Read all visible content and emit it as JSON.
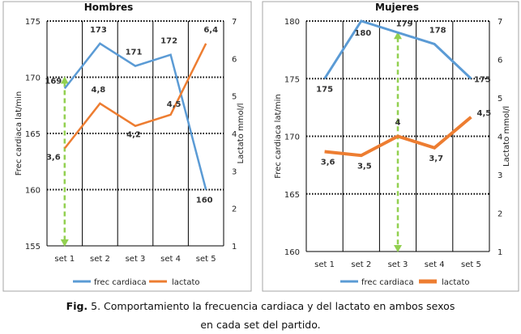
{
  "caption": {
    "fig_label": "Fig.",
    "line1": " 5. Comportamiento la frecuencia cardiaca y del lactato en ambos sexos",
    "line2": "en cada set del partido."
  },
  "colors": {
    "hr": "#5b9bd5",
    "lactate": "#ed7d31",
    "arrow": "#92d050",
    "grid": "#000000",
    "frame": "#a6a6a6"
  },
  "chart_data": [
    {
      "type": "line",
      "title": "Hombres",
      "categories": [
        "set 1",
        "set 2",
        "set 3",
        "set 4",
        "set 5"
      ],
      "series": [
        {
          "name": "frec cardiaca",
          "axis": "left",
          "values": [
            169,
            173,
            171,
            172,
            160
          ],
          "labels": [
            "169",
            "173",
            "171",
            "172",
            "160"
          ]
        },
        {
          "name": "lactato",
          "axis": "right",
          "values": [
            3.6,
            4.8,
            4.2,
            4.5,
            6.4
          ],
          "labels": [
            "3,6",
            "4,8",
            "4,2",
            "4,5",
            "6,4"
          ]
        }
      ],
      "ylabel": "Frec cardiaca lat/min",
      "y2label": "Lactato mmol/l",
      "ylim": [
        155,
        175
      ],
      "yticks": [
        "155",
        "160",
        "165",
        "170",
        "175"
      ],
      "y2lim": [
        1,
        7
      ],
      "y2ticks": [
        "1",
        "2",
        "3",
        "4",
        "5",
        "6",
        "7"
      ],
      "arrow": {
        "category": "set 1",
        "from": 170,
        "to": 155
      },
      "legend": "bottom"
    },
    {
      "type": "line",
      "title": "Mujeres",
      "categories": [
        "set 1",
        "set 2",
        "set 3",
        "set 4",
        "set 5"
      ],
      "series": [
        {
          "name": "frec cardiaca",
          "axis": "left",
          "values": [
            175,
            180,
            179,
            178,
            175
          ],
          "labels": [
            "175",
            "180",
            "179",
            "178",
            "175"
          ]
        },
        {
          "name": "lactato",
          "axis": "right",
          "values": [
            3.6,
            3.5,
            4,
            3.7,
            4.5
          ],
          "labels": [
            "3,6",
            "3,5",
            "4",
            "3,7",
            "4,5"
          ]
        }
      ],
      "ylabel": "Frec cardiaca lat/min",
      "y2label": "Lactato mmol/l",
      "ylim": [
        160,
        180
      ],
      "yticks": [
        "160",
        "165",
        "170",
        "175",
        "180"
      ],
      "y2lim": [
        1,
        7
      ],
      "y2ticks": [
        "1",
        "2",
        "3",
        "4",
        "5",
        "6",
        "7"
      ],
      "arrow": {
        "category": "set 3",
        "from": 179,
        "to": 160
      },
      "legend": "bottom"
    }
  ]
}
